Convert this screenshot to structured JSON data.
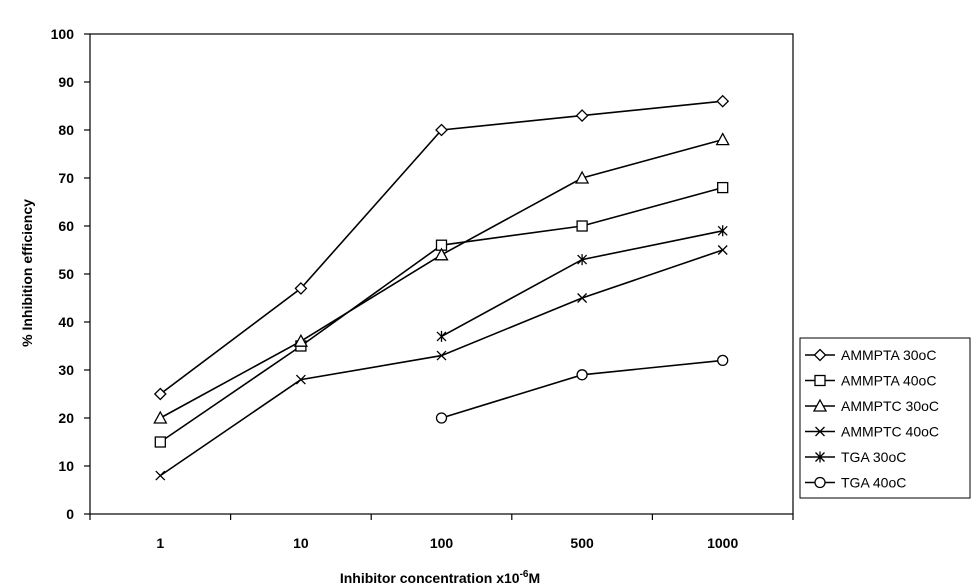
{
  "chart_data": {
    "type": "line",
    "categories": [
      "1",
      "10",
      "100",
      "500",
      "1000"
    ],
    "ylabel": "% Inhibition efficiency",
    "xlabel_main": "Inhibitor concentration x10",
    "xlabel_exp": "-6",
    "xlabel_unit": "M",
    "ylim": [
      0,
      100
    ],
    "yticks": [
      "0",
      "10",
      "20",
      "30",
      "40",
      "50",
      "60",
      "70",
      "80",
      "90",
      "100"
    ],
    "grid": false,
    "legend_position": "right",
    "series": [
      {
        "name": "AMMPTA 30oC",
        "marker": "diamond",
        "values": [
          25,
          47,
          80,
          83,
          86
        ]
      },
      {
        "name": "AMMPTA 40oC",
        "marker": "square",
        "values": [
          15,
          35,
          56,
          60,
          68
        ]
      },
      {
        "name": "AMMPTC 30oC",
        "marker": "triangle",
        "values": [
          20,
          36,
          54,
          70,
          78
        ]
      },
      {
        "name": "AMMPTC 40oC",
        "marker": "x",
        "values": [
          8,
          28,
          33,
          45,
          55
        ]
      },
      {
        "name": "TGA 30oC",
        "marker": "star",
        "values": [
          null,
          null,
          37,
          53,
          59
        ]
      },
      {
        "name": "TGA 40oC",
        "marker": "circle",
        "values": [
          null,
          null,
          20,
          29,
          32
        ]
      }
    ]
  }
}
